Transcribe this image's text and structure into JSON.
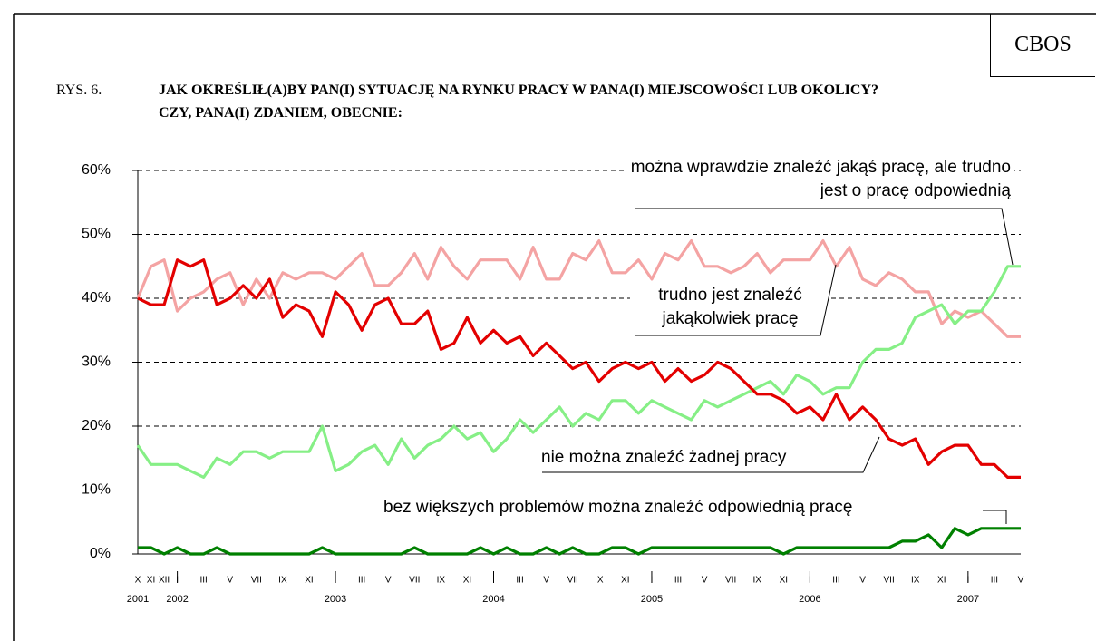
{
  "brand": "CBOS",
  "chart_data": {
    "type": "line",
    "figure_label": "RYS. 6.",
    "title": "JAK OKREŚLIŁ(A)BY PAN(I) SYTUACJĘ NA RYNKU PRACY W PANA(I) MIEJSCOWOŚCI LUB OKOLICY? CZY, PANA(I) ZDANIEM, OBECNIE:",
    "categories": [
      "X",
      "XI",
      "XII",
      "I",
      null,
      "III",
      null,
      "V",
      null,
      "VII",
      null,
      "IX",
      null,
      "XI",
      null,
      "I",
      null,
      "III",
      null,
      "V",
      null,
      "VII",
      null,
      "IX",
      null,
      "XI",
      null,
      "I",
      null,
      "III",
      null,
      "V",
      null,
      "VII",
      null,
      "IX",
      null,
      "XI",
      null,
      "I",
      null,
      "III",
      null,
      "V",
      null,
      "VII",
      null,
      "IX",
      null,
      "XI",
      null,
      "I",
      null,
      "III",
      null,
      "V",
      null,
      "VII",
      null,
      "IX",
      null,
      "XI",
      null,
      "I",
      null,
      "III",
      null,
      "V"
    ],
    "category_years": [
      "2001",
      null,
      null,
      "2002",
      null,
      null,
      null,
      null,
      null,
      null,
      null,
      null,
      null,
      null,
      null,
      "2003",
      null,
      null,
      null,
      null,
      null,
      null,
      null,
      null,
      null,
      null,
      null,
      "2004",
      null,
      null,
      null,
      null,
      null,
      null,
      null,
      null,
      null,
      null,
      null,
      "2005",
      null,
      null,
      null,
      null,
      null,
      null,
      null,
      null,
      null,
      null,
      null,
      "2006",
      null,
      null,
      null,
      null,
      null,
      null,
      null,
      null,
      null,
      null,
      null,
      "2007",
      null,
      null,
      null,
      null
    ],
    "series": [
      {
        "name": "można wprawdzie znaleźć jakąś pracę, ale trudno jest o pracę odpowiednią",
        "color": "#f4a3a3",
        "values": [
          40,
          45,
          46,
          38,
          40,
          41,
          43,
          44,
          39,
          43,
          40,
          44,
          43,
          44,
          44,
          43,
          45,
          47,
          42,
          42,
          44,
          47,
          43,
          48,
          45,
          43,
          46,
          46,
          46,
          43,
          48,
          43,
          43,
          47,
          46,
          49,
          44,
          44,
          46,
          43,
          47,
          46,
          49,
          45,
          45,
          44,
          45,
          47,
          44,
          46,
          46,
          46,
          49,
          45,
          48,
          43,
          42,
          44,
          43,
          41,
          41,
          36,
          38,
          37,
          38,
          36,
          34,
          34
        ]
      },
      {
        "name": "trudno jest znaleźć jakąkolwiek pracę",
        "color": "#86ef86",
        "values": [
          17,
          14,
          14,
          14,
          13,
          12,
          15,
          14,
          16,
          16,
          15,
          16,
          16,
          16,
          20,
          13,
          14,
          16,
          17,
          14,
          18,
          15,
          17,
          18,
          20,
          18,
          19,
          16,
          18,
          21,
          19,
          21,
          23,
          20,
          22,
          21,
          24,
          24,
          22,
          24,
          23,
          22,
          21,
          24,
          23,
          24,
          25,
          26,
          27,
          25,
          28,
          27,
          25,
          26,
          26,
          30,
          32,
          32,
          33,
          37,
          38,
          39,
          36,
          38,
          38,
          41,
          45,
          45
        ]
      },
      {
        "name": "nie można znaleźć żadnej pracy",
        "color": "#e30000",
        "values": [
          40,
          39,
          39,
          46,
          45,
          46,
          39,
          40,
          42,
          40,
          43,
          37,
          39,
          38,
          34,
          41,
          39,
          35,
          39,
          40,
          36,
          36,
          38,
          32,
          33,
          37,
          33,
          35,
          33,
          34,
          31,
          33,
          31,
          29,
          30,
          27,
          29,
          30,
          29,
          30,
          27,
          29,
          27,
          28,
          30,
          29,
          27,
          25,
          25,
          24,
          22,
          23,
          21,
          25,
          21,
          23,
          21,
          18,
          17,
          18,
          14,
          16,
          17,
          17,
          14,
          14,
          12,
          12
        ]
      },
      {
        "name": "bez większych problemów można znaleźć odpowiednią pracę",
        "color": "#008000",
        "values": [
          1,
          1,
          0,
          1,
          0,
          0,
          1,
          0,
          0,
          0,
          0,
          0,
          0,
          0,
          1,
          0,
          0,
          0,
          0,
          0,
          0,
          1,
          0,
          0,
          0,
          0,
          1,
          0,
          1,
          0,
          0,
          1,
          0,
          1,
          0,
          0,
          1,
          1,
          0,
          1,
          1,
          1,
          1,
          1,
          1,
          1,
          1,
          1,
          1,
          0,
          1,
          1,
          1,
          1,
          1,
          1,
          1,
          1,
          2,
          2,
          3,
          1,
          4,
          3,
          4,
          4,
          4,
          4
        ]
      }
    ],
    "ylim": [
      0,
      60
    ],
    "yticks": [
      {
        "value": 0,
        "label": "0%"
      },
      {
        "value": 10,
        "label": "10%"
      },
      {
        "value": 20,
        "label": "20%"
      },
      {
        "value": 30,
        "label": "30%"
      },
      {
        "value": 40,
        "label": "40%"
      },
      {
        "value": 50,
        "label": "50%"
      },
      {
        "value": 60,
        "label": "60%"
      }
    ],
    "grid": true
  }
}
